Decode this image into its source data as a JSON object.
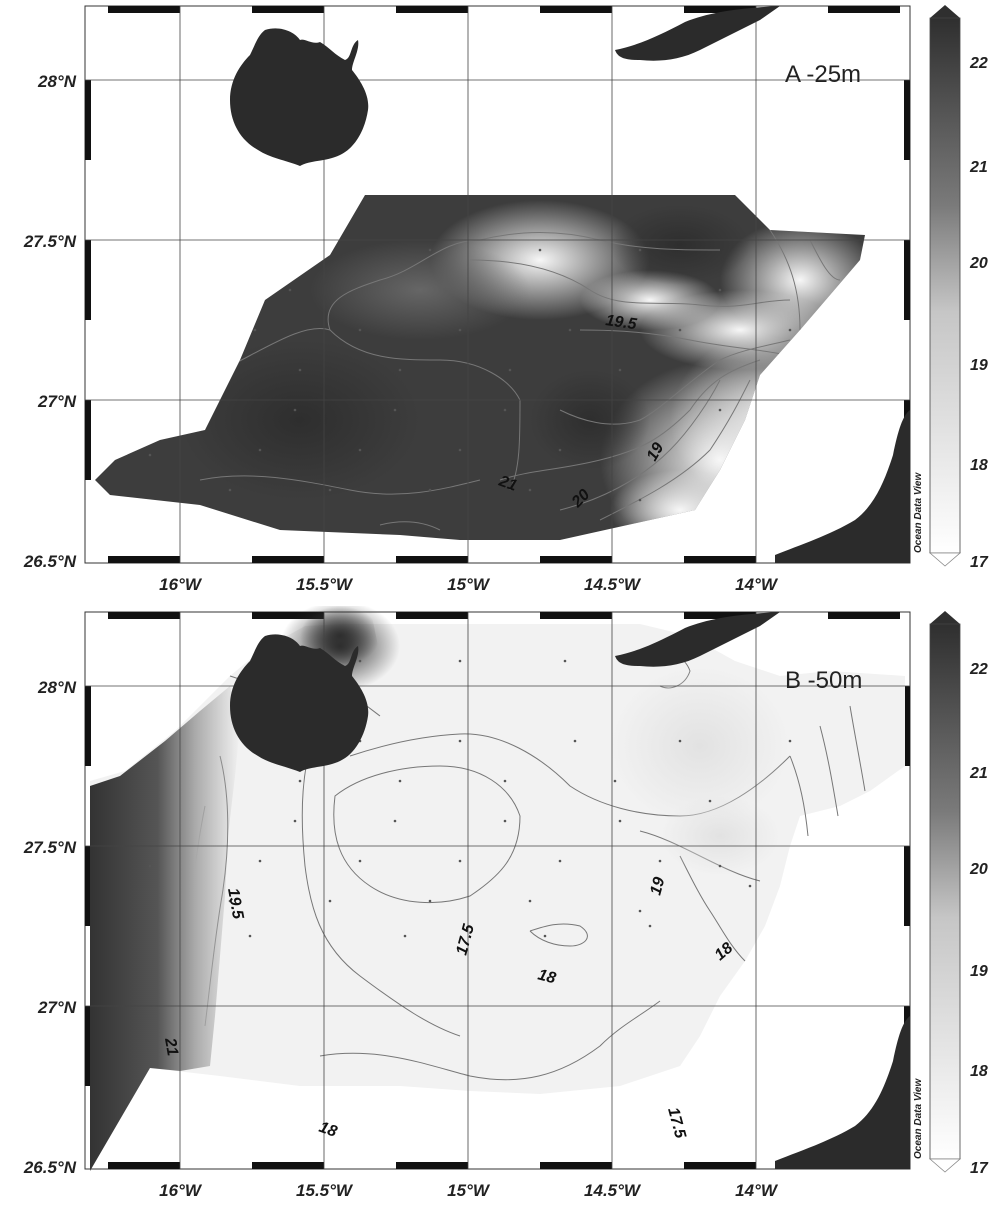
{
  "colors": {
    "land": "#2b2b2b",
    "high": "#3a3a3a",
    "low": "#f4f4f4",
    "contour": "#777777",
    "grid": "#444444"
  },
  "watermark": "Ocean Data View",
  "longitude_ticks": [
    "16°W",
    "15.5°W",
    "15°W",
    "14.5°W",
    "14°W"
  ],
  "latitude_ticks": [
    "28°N",
    "27.5°N",
    "27°N",
    "26.5°N"
  ],
  "colorbar": {
    "ticks": [
      "22",
      "21",
      "20",
      "19",
      "18",
      "17"
    ],
    "min": 17,
    "max": 22.5
  },
  "panels": [
    {
      "title": "A -25m",
      "contour_labels": [
        "19.5",
        "19",
        "20",
        "21"
      ]
    },
    {
      "title": "B -50m",
      "contour_labels": [
        "19",
        "17.5",
        "18",
        "18",
        "19.5",
        "21",
        "18",
        "17.5"
      ]
    }
  ]
}
